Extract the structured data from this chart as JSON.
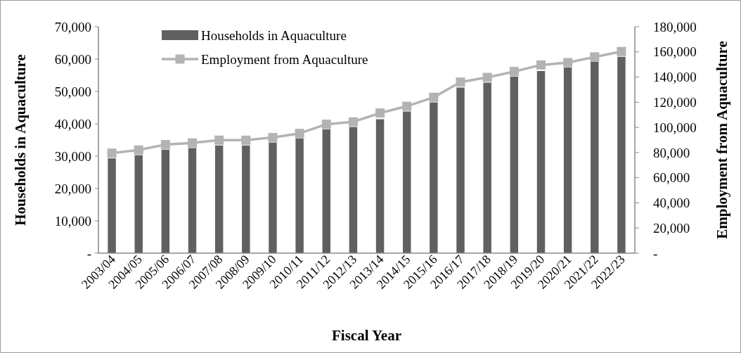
{
  "chart_data": {
    "type": "bar",
    "xlabel": "Fiscal Year",
    "ylabel": "Households in Aquaculture",
    "y2label": "Employment from Aquaculture",
    "categories": [
      "2003/04",
      "2004/05",
      "2005/06",
      "2006/07",
      "2007/08",
      "2008/09",
      "2009/10",
      "2010/11",
      "2011/12",
      "2012/13",
      "2013/14",
      "2014/15",
      "2015/16",
      "2016/17",
      "2017/18",
      "2018/19",
      "2019/20",
      "2020/21",
      "2021/22",
      "2022/23"
    ],
    "series": [
      {
        "name": "Households in Aquaculture",
        "color": "#606060",
        "values": [
          29300,
          30300,
          32000,
          32500,
          33300,
          33300,
          34200,
          35500,
          38300,
          39000,
          41400,
          43800,
          46600,
          51200,
          52700,
          54600,
          56300,
          57400,
          59200,
          60700
        ]
      },
      {
        "name": "Employment from Aquaculture",
        "type": "line",
        "axis": "y2",
        "color": "#b3b3b3",
        "values": [
          79500,
          82000,
          86300,
          87600,
          89800,
          89800,
          91900,
          95200,
          102500,
          104400,
          111400,
          116800,
          123900,
          136000,
          139700,
          144400,
          149600,
          151500,
          156000,
          160300
        ]
      }
    ],
    "ylim": [
      0,
      70000
    ],
    "yticks": [
      {
        "value": 0,
        "label": "-"
      },
      {
        "value": 10000,
        "label": "10,000"
      },
      {
        "value": 20000,
        "label": "20,000"
      },
      {
        "value": 30000,
        "label": "30,000"
      },
      {
        "value": 40000,
        "label": "40,000"
      },
      {
        "value": 50000,
        "label": "50,000"
      },
      {
        "value": 60000,
        "label": "60,000"
      },
      {
        "value": 70000,
        "label": "70,000"
      }
    ],
    "y2lim": [
      0,
      180000
    ],
    "y2ticks": [
      {
        "value": 0,
        "label": "-"
      },
      {
        "value": 20000,
        "label": "20,000"
      },
      {
        "value": 40000,
        "label": "40,000"
      },
      {
        "value": 60000,
        "label": "60,000"
      },
      {
        "value": 80000,
        "label": "80,000"
      },
      {
        "value": 100000,
        "label": "100,000"
      },
      {
        "value": 120000,
        "label": "120,000"
      },
      {
        "value": 140000,
        "label": "140,000"
      },
      {
        "value": 160000,
        "label": "160,000"
      },
      {
        "value": 180000,
        "label": "180,000"
      }
    ],
    "marker": "square",
    "legend": "top left",
    "grid": false
  }
}
